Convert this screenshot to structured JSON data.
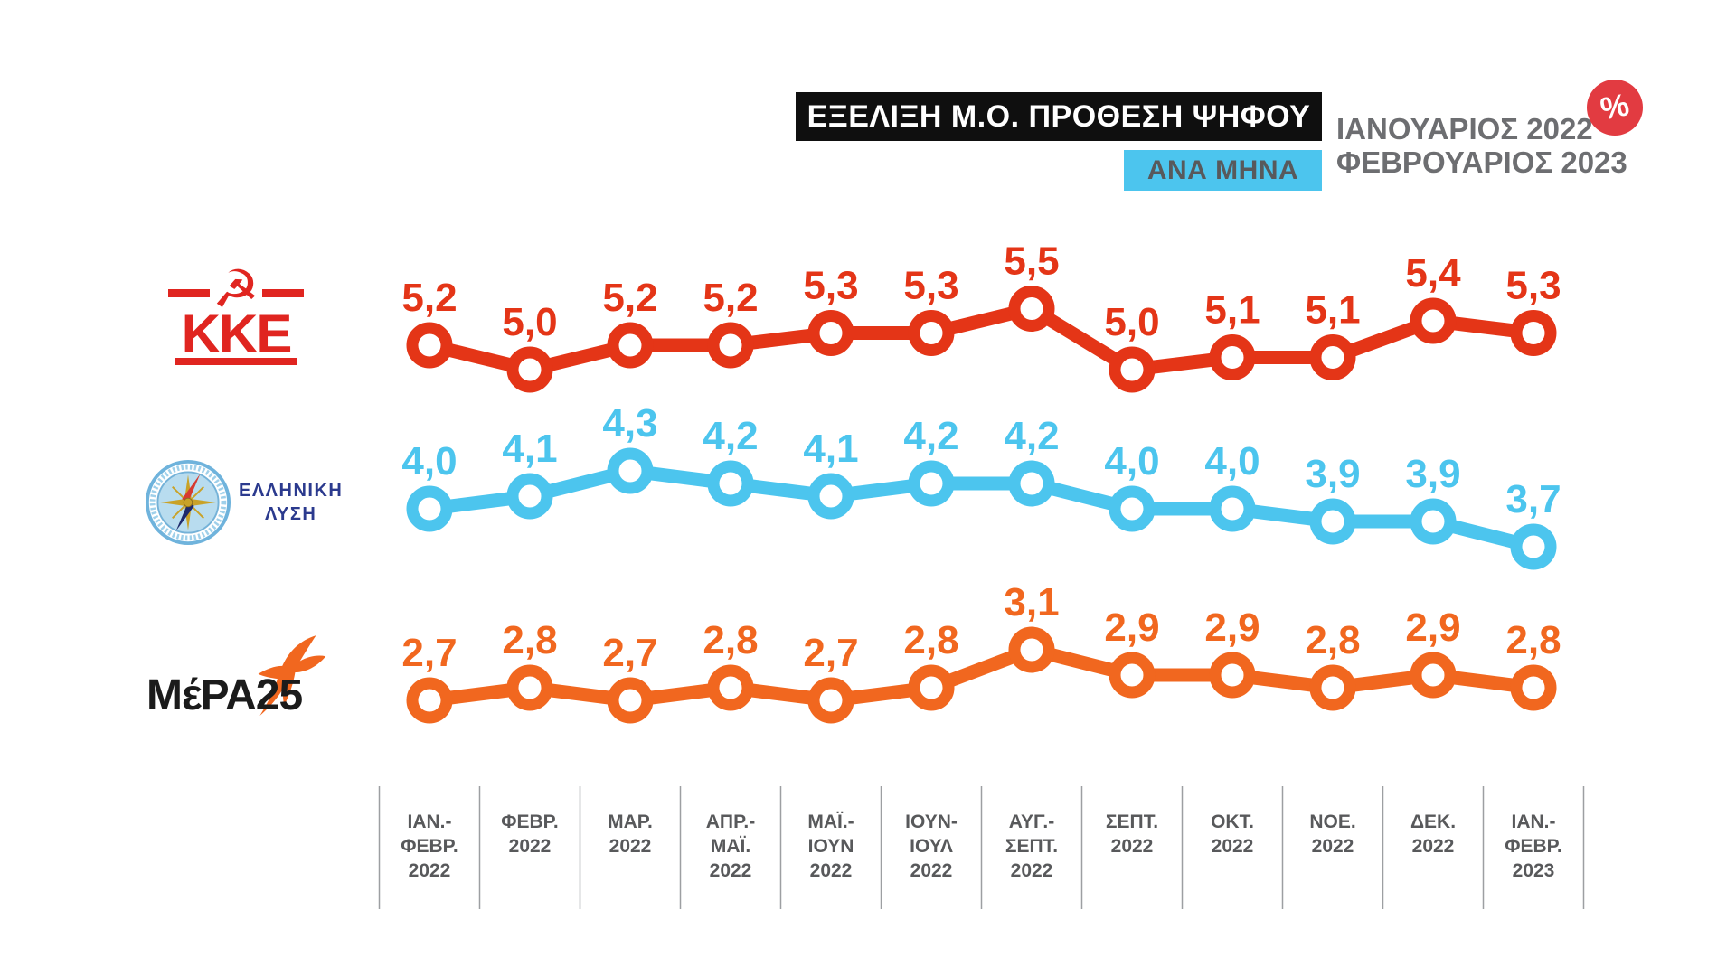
{
  "header": {
    "title": "ΕΞΕΛΙΞΗ Μ.Ο. ΠΡΟΘΕΣΗ ΨΗΦΟΥ",
    "subtitle": "ΑΝΑ ΜΗΝΑ",
    "period_line1": "ΙΑΝΟΥΑΡΙΟΣ 2022",
    "period_line2": "ΦΕΒΡΟΥΑΡΙΟΣ 2023",
    "percent_symbol": "%"
  },
  "logos": {
    "kke": {
      "text": "ΚΚΕ",
      "icon": "☭"
    },
    "greek_solution": {
      "line1": "ΕΛΛΗΝΙΚΗ",
      "line2": "ΛΥΣΗ"
    },
    "mera25": {
      "text": "ΜέΡΑ25"
    }
  },
  "colors": {
    "kke_red": "#e43517",
    "greek_solution_blue": "#4cc5ee",
    "mera25_orange": "#f1671f",
    "subtitle_cyan": "#4cc5ee",
    "badge_red": "#e23b41",
    "header_gray": "#6d6e71",
    "axis_gray": "#58595b",
    "title_bg": "#0f0f0f"
  },
  "chart_data": {
    "type": "line",
    "title": "ΕΞΕΛΙΞΗ Μ.Ο. ΠΡΟΘΕΣΗ ΨΗΦΟΥ ΑΝΑ ΜΗΝΑ, ΙΑΝΟΥΑΡΙΟΣ 2022 - ΦΕΒΡΟΥΑΡΙΟΣ 2023",
    "unit": "%",
    "decimal_separator": ",",
    "grid": true,
    "legend_position": "left",
    "x_categories": [
      [
        "ΙΑΝ.-",
        "ΦΕΒΡ.",
        "2022"
      ],
      [
        "ΦΕΒΡ.",
        "2022"
      ],
      [
        "ΜΑΡ.",
        "2022"
      ],
      [
        "ΑΠΡ.-",
        "ΜΑΪ.",
        "2022"
      ],
      [
        "ΜΑΪ.-",
        "ΙΟΥΝ",
        "2022"
      ],
      [
        "ΙΟΥΝ-",
        "ΙΟΥΛ",
        "2022"
      ],
      [
        "ΑΥΓ.-",
        "ΣΕΠΤ.",
        "2022"
      ],
      [
        "ΣΕΠΤ.",
        "2022"
      ],
      [
        "ΟΚΤ.",
        "2022"
      ],
      [
        "ΝΟΕ.",
        "2022"
      ],
      [
        "ΔΕΚ.",
        "2022"
      ],
      [
        "ΙΑΝ.-",
        "ΦΕΒΡ.",
        "2023"
      ]
    ],
    "series": [
      {
        "name": "ΚΚΕ",
        "color": "#e43517",
        "values": [
          5.2,
          5.0,
          5.2,
          5.2,
          5.3,
          5.3,
          5.5,
          5.0,
          5.1,
          5.1,
          5.4,
          5.3
        ]
      },
      {
        "name": "ΕΛΛΗΝΙΚΗ ΛΥΣΗ",
        "color": "#4cc5ee",
        "values": [
          4.0,
          4.1,
          4.3,
          4.2,
          4.1,
          4.2,
          4.2,
          4.0,
          4.0,
          3.9,
          3.9,
          3.7
        ]
      },
      {
        "name": "ΜέΡΑ25",
        "color": "#f1671f",
        "values": [
          2.7,
          2.8,
          2.7,
          2.8,
          2.7,
          2.8,
          3.1,
          2.9,
          2.9,
          2.8,
          2.9,
          2.8
        ]
      }
    ]
  }
}
